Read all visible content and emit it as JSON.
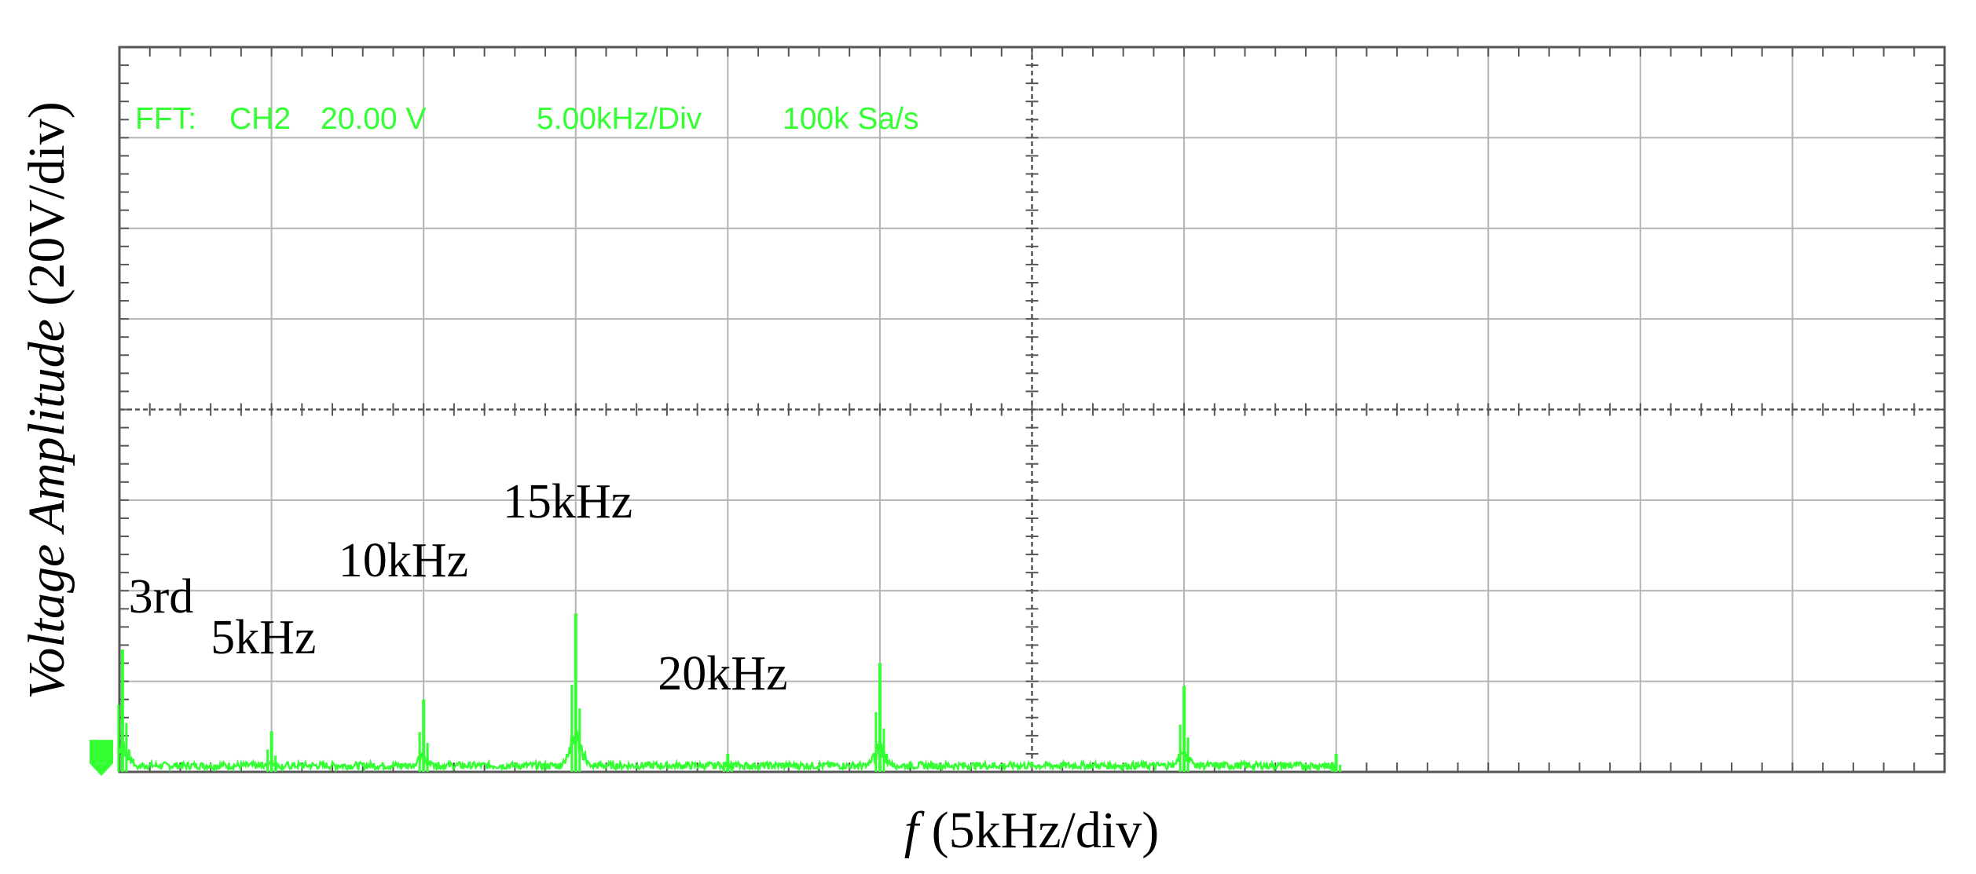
{
  "chart_data": {
    "type": "line",
    "title": "",
    "xlabel_italic": "f",
    "xlabel_rest": " (5kHz/div)",
    "ylabel_italic": "Voltage Amplitude",
    "ylabel_rest": " (20V/div)",
    "header": {
      "mode": "FFT:",
      "channel": "CH2",
      "scale": "20.00 V",
      "timebase": "5.00kHz/Div",
      "sample_rate": "100k Sa/s"
    },
    "x_unit": "kHz",
    "y_unit": "V",
    "xlim": [
      0,
      60
    ],
    "ylim": [
      0,
      160
    ],
    "grid": true,
    "trace_color": "#33ff33",
    "peaks": [
      {
        "x": 0.1,
        "y": 27
      },
      {
        "x": 5.0,
        "y": 9
      },
      {
        "x": 10.0,
        "y": 16
      },
      {
        "x": 15.0,
        "y": 35
      },
      {
        "x": 20.0,
        "y": 4
      },
      {
        "x": 25.0,
        "y": 24
      },
      {
        "x": 35.0,
        "y": 19
      },
      {
        "x": 40.0,
        "y": 4
      }
    ],
    "trace_end_x": 40.0,
    "annotations": [
      {
        "text": "3rd",
        "x": 0.3,
        "y": 34
      },
      {
        "text": "5kHz",
        "x": 3.0,
        "y": 25
      },
      {
        "text": "10kHz",
        "x": 7.2,
        "y": 42
      },
      {
        "text": "15kHz",
        "x": 12.6,
        "y": 55
      },
      {
        "text": "20kHz",
        "x": 17.7,
        "y": 17
      }
    ]
  }
}
